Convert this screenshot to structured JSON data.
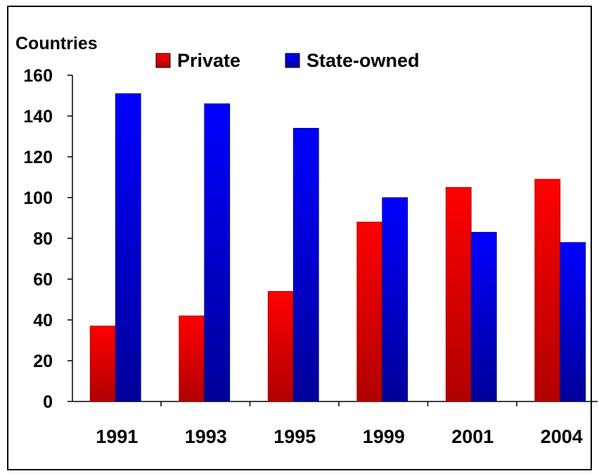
{
  "chart_data": {
    "type": "bar",
    "title": "",
    "ylabel": "Countries",
    "xlabel": "",
    "categories": [
      "1991",
      "1993",
      "1995",
      "1999",
      "2001",
      "2004"
    ],
    "series": [
      {
        "name": "Private",
        "values": [
          37,
          42,
          54,
          88,
          105,
          109
        ],
        "color": "#ff0000"
      },
      {
        "name": "State-owned",
        "values": [
          151,
          146,
          134,
          100,
          83,
          78
        ],
        "color": "#0000ff"
      }
    ],
    "ylim": [
      0,
      160
    ],
    "yticks": [
      0,
      20,
      40,
      60,
      80,
      100,
      120,
      140,
      160
    ],
    "grid": false,
    "legend_position": "top"
  }
}
